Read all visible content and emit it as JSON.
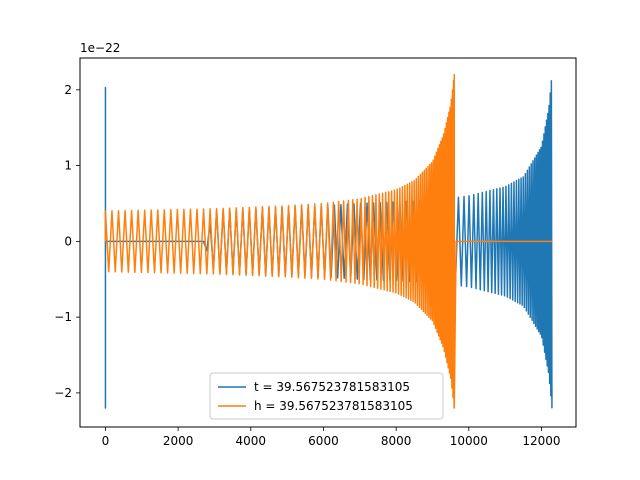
{
  "chart_data": {
    "type": "line",
    "title": "",
    "xlabel": "",
    "ylabel": "",
    "offset_label": "1e−22",
    "xlim": [
      -700,
      12950
    ],
    "ylim": [
      -2.45,
      2.42
    ],
    "xticks": [
      0,
      2000,
      4000,
      6000,
      8000,
      10000,
      12000
    ],
    "xtick_labels": [
      "0",
      "2000",
      "4000",
      "6000",
      "8000",
      "10000",
      "12000"
    ],
    "yticks": [
      -2,
      -1,
      0,
      1,
      2
    ],
    "ytick_labels": [
      "−2",
      "−1",
      "0",
      "1",
      "2"
    ],
    "grid": false,
    "legend_position": "lower-center",
    "series": [
      {
        "name": "t = 39.567523781583105",
        "color": "#1f77b4",
        "description": "oscillating signal spanning x 0–12288; spike to ±2.2 near x=0, flat zero until ~2700, then chirp with envelope rising from ~0.4 to ~2.2 at x≈12288",
        "points": [
          [
            0,
            0
          ],
          [
            0,
            2.03
          ],
          [
            0,
            -2.2
          ],
          [
            0,
            0
          ],
          [
            2700,
            0
          ],
          [
            3000,
            0.41
          ],
          [
            4000,
            0.43
          ],
          [
            5000,
            0.45
          ],
          [
            6000,
            0.47
          ],
          [
            7000,
            0.5
          ],
          [
            8000,
            0.52
          ],
          [
            9000,
            0.54
          ],
          [
            10000,
            0.6
          ],
          [
            11000,
            0.72
          ],
          [
            11500,
            0.85
          ],
          [
            12000,
            1.25
          ],
          [
            12200,
            1.75
          ],
          [
            12288,
            2.2
          ]
        ]
      },
      {
        "name": "h = 39.567523781583105",
        "color": "#ff7f0e",
        "description": "oscillating signal spanning x 0–9600; chirp with envelope ~0.4 rising to ~2.2 at x≈9600, then flat zero until x≈12288",
        "points": [
          [
            0,
            0.4
          ],
          [
            1000,
            0.41
          ],
          [
            2000,
            0.42
          ],
          [
            3000,
            0.43
          ],
          [
            4000,
            0.45
          ],
          [
            5000,
            0.47
          ],
          [
            6000,
            0.5
          ],
          [
            7000,
            0.56
          ],
          [
            8000,
            0.68
          ],
          [
            8500,
            0.8
          ],
          [
            9000,
            1.05
          ],
          [
            9300,
            1.4
          ],
          [
            9500,
            1.8
          ],
          [
            9600,
            2.2
          ],
          [
            9650,
            0
          ],
          [
            12288,
            0
          ]
        ]
      }
    ]
  }
}
